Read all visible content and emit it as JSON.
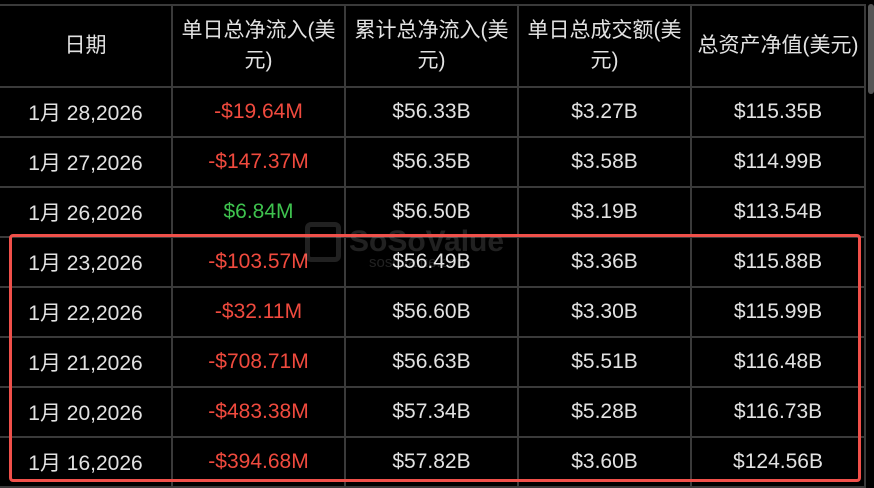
{
  "headers": [
    "日期",
    "单日总净流入(美元)",
    "累计总净流入(美元)",
    "单日总成交额(美元)",
    "总资产净值(美元)"
  ],
  "rows": [
    {
      "date": "1月 28,2026",
      "daily_net_inflow": "-$19.64M",
      "cumulative_net_inflow": "$56.33B",
      "daily_value_traded": "$3.27B",
      "total_net_assets": "$115.35B",
      "flow_sign": "negative"
    },
    {
      "date": "1月 27,2026",
      "daily_net_inflow": "-$147.37M",
      "cumulative_net_inflow": "$56.35B",
      "daily_value_traded": "$3.58B",
      "total_net_assets": "$114.99B",
      "flow_sign": "negative"
    },
    {
      "date": "1月 26,2026",
      "daily_net_inflow": "$6.84M",
      "cumulative_net_inflow": "$56.50B",
      "daily_value_traded": "$3.19B",
      "total_net_assets": "$113.54B",
      "flow_sign": "positive"
    },
    {
      "date": "1月 23,2026",
      "daily_net_inflow": "-$103.57M",
      "cumulative_net_inflow": "$56.49B",
      "daily_value_traded": "$3.36B",
      "total_net_assets": "$115.88B",
      "flow_sign": "negative"
    },
    {
      "date": "1月 22,2026",
      "daily_net_inflow": "-$32.11M",
      "cumulative_net_inflow": "$56.60B",
      "daily_value_traded": "$3.30B",
      "total_net_assets": "$115.99B",
      "flow_sign": "negative"
    },
    {
      "date": "1月 21,2026",
      "daily_net_inflow": "-$708.71M",
      "cumulative_net_inflow": "$56.63B",
      "daily_value_traded": "$5.51B",
      "total_net_assets": "$116.48B",
      "flow_sign": "negative"
    },
    {
      "date": "1月 20,2026",
      "daily_net_inflow": "-$483.38M",
      "cumulative_net_inflow": "$57.34B",
      "daily_value_traded": "$5.28B",
      "total_net_assets": "$116.73B",
      "flow_sign": "negative"
    },
    {
      "date": "1月 16,2026",
      "daily_net_inflow": "-$394.68M",
      "cumulative_net_inflow": "$57.82B",
      "daily_value_traded": "$3.60B",
      "total_net_assets": "$124.56B",
      "flow_sign": "negative"
    }
  ],
  "watermark": {
    "brand": "SoSoValue",
    "site": "sosovalue.com"
  },
  "colors": {
    "negative": "#f04a3e",
    "positive": "#3ec24e",
    "highlight": "#f0504a",
    "text": "#e2e2e2"
  }
}
